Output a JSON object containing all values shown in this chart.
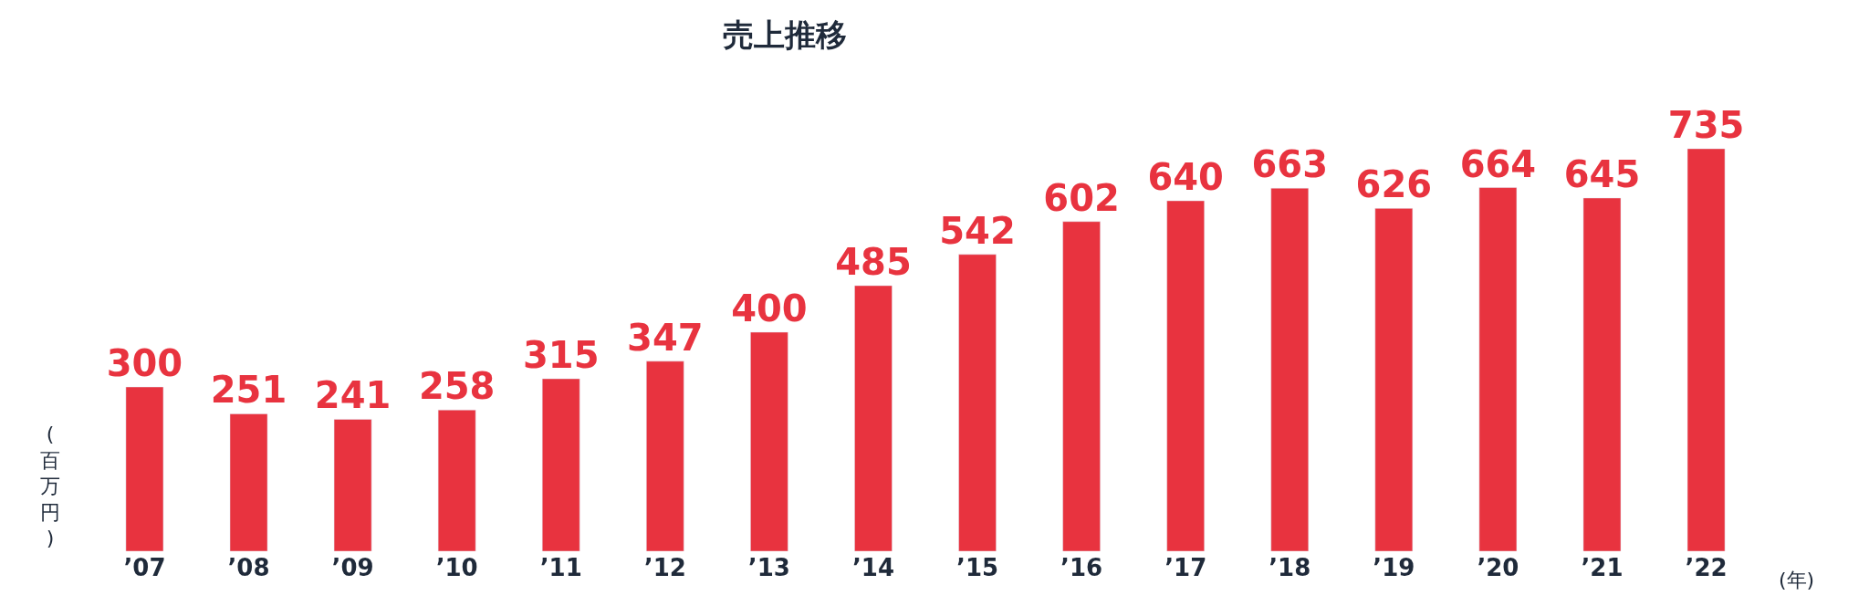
{
  "chart_data": {
    "type": "bar",
    "title": "売上推移",
    "ylabel": "(百万円)",
    "xlabel": "(年)",
    "categories": [
      "’07",
      "’08",
      "’09",
      "’10",
      "’11",
      "’12",
      "’13",
      "’14",
      "’15",
      "’16",
      "’17",
      "’18",
      "’19",
      "’20",
      "’21",
      "’22"
    ],
    "values": [
      300,
      251,
      241,
      258,
      315,
      347,
      400,
      485,
      542,
      602,
      640,
      663,
      626,
      664,
      645,
      735
    ],
    "color": "#e8333f",
    "data_labels": true,
    "legend": false,
    "tick_labels": "x"
  }
}
